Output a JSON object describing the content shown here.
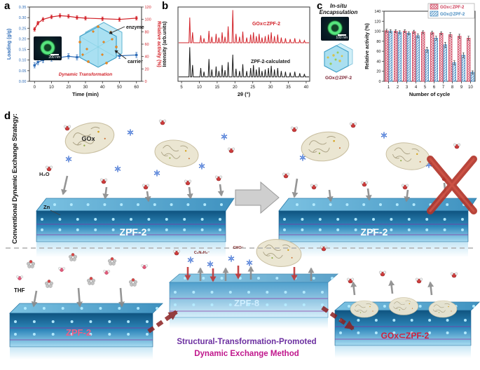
{
  "panels": {
    "a": {
      "label": "a",
      "inset": {
        "scalebar": "200 nm",
        "enzyme_label": "enzyme",
        "carrier_label": "carrier"
      }
    },
    "b": {
      "label": "b"
    },
    "c": {
      "label": "c",
      "inset": {
        "title_line1": "In-situ",
        "title_line2": "Encapsulation",
        "scalebar": "100 nm",
        "crystal_label": "GOx@ZPF-2"
      }
    },
    "d": {
      "label": "d",
      "conventional_label": "Conventional Dynamic Exchange Strategy:",
      "gox_label": "GOx",
      "h2o_label": "H₂O",
      "zn_label": "Zn",
      "slab1_label": "ZPF-2",
      "slab2_label": "ZPF-2",
      "slab3_label": "ZPF-2",
      "zpf8_label": "ZPF-8",
      "product_label": "GOx⊂ZPF-2",
      "mol_label1": "C₃N₂H₃⁻",
      "mol_label2": "CHO⁻",
      "thf_label": "THF",
      "method_line1": "Structural-Transformation-Promoted",
      "method_line2": "Dynamic Exchange Method"
    }
  },
  "chart_data": [
    {
      "type": "line",
      "title": "",
      "xlabel": "Time (min)",
      "ylabel_left": "Loading (g/g)",
      "ylabel_right": "Relative activity (%)",
      "xlim": [
        -3,
        63
      ],
      "xticks": [
        0,
        10,
        20,
        30,
        40,
        50,
        60
      ],
      "ylim_left": [
        0,
        0.35
      ],
      "yticks_left": [
        0,
        0.05,
        0.1,
        0.15,
        0.2,
        0.25,
        0.3,
        0.35
      ],
      "ylim_right": [
        0,
        120
      ],
      "yticks_right": [
        0,
        20,
        40,
        60,
        80,
        100,
        120
      ],
      "annotation": "Dynamic Transformation",
      "series": [
        {
          "name": "Loading",
          "axis": "left",
          "color": "#2f6db8",
          "marker": "square",
          "x": [
            0,
            2,
            5,
            10,
            15,
            20,
            25,
            30,
            40,
            50,
            60
          ],
          "y": [
            0.075,
            0.09,
            0.1,
            0.107,
            0.112,
            0.118,
            0.113,
            0.12,
            0.116,
            0.12,
            0.124
          ],
          "err": [
            0.012,
            0.012,
            0.012,
            0.012,
            0.012,
            0.012,
            0.012,
            0.012,
            0.012,
            0.012,
            0.012
          ]
        },
        {
          "name": "Relative activity",
          "axis": "right",
          "color": "#d2232a",
          "marker": "circle",
          "x": [
            0,
            2,
            5,
            10,
            15,
            20,
            25,
            30,
            40,
            50,
            60
          ],
          "y": [
            84,
            94,
            100,
            104,
            106,
            105,
            103,
            102,
            101,
            100,
            102
          ],
          "err": [
            3,
            3,
            3,
            3,
            3,
            3,
            3,
            3,
            3,
            3,
            3
          ]
        }
      ]
    },
    {
      "type": "line",
      "xlabel": "2θ (°)",
      "ylabel": "Intensity (arb.units)",
      "xlim": [
        4,
        41
      ],
      "xticks": [
        5,
        10,
        15,
        20,
        25,
        30,
        35,
        40
      ],
      "traces": [
        {
          "name": "GOx⊂ZPF-2",
          "color": "#d2232a",
          "offset": 0.5,
          "peaks": [
            [
              7.3,
              0.34
            ],
            [
              8.1,
              0.14
            ],
            [
              10.4,
              0.1
            ],
            [
              11.3,
              0.06
            ],
            [
              12.7,
              0.16
            ],
            [
              13.5,
              0.08
            ],
            [
              14.7,
              0.12
            ],
            [
              15.5,
              0.07
            ],
            [
              16.4,
              0.14
            ],
            [
              17.2,
              0.08
            ],
            [
              18.1,
              0.22
            ],
            [
              19.4,
              0.44
            ],
            [
              20.3,
              0.12
            ],
            [
              21.3,
              0.08
            ],
            [
              22.2,
              0.15
            ],
            [
              23.3,
              0.07
            ],
            [
              24.4,
              0.11
            ],
            [
              25.2,
              0.14
            ],
            [
              26,
              0.09
            ],
            [
              26.8,
              0.12
            ],
            [
              27.6,
              0.07
            ],
            [
              28.5,
              0.09
            ],
            [
              29.4,
              0.11
            ],
            [
              30.2,
              0.14
            ],
            [
              31.1,
              0.09
            ],
            [
              32,
              0.11
            ],
            [
              33,
              0.07
            ],
            [
              34.2,
              0.06
            ],
            [
              35.5,
              0.05
            ],
            [
              36.8,
              0.06
            ],
            [
              38.2,
              0.04
            ],
            [
              39.5,
              0.03
            ]
          ]
        },
        {
          "name": "ZPF-2-calculated",
          "color": "#1a1a1a",
          "offset": 0.04,
          "peaks": [
            [
              7.3,
              0.4
            ],
            [
              8.1,
              0.16
            ],
            [
              10.4,
              0.12
            ],
            [
              11.3,
              0.07
            ],
            [
              12.7,
              0.24
            ],
            [
              13.5,
              0.1
            ],
            [
              14.7,
              0.14
            ],
            [
              15.5,
              0.08
            ],
            [
              16.4,
              0.16
            ],
            [
              17.2,
              0.09
            ],
            [
              18.1,
              0.2
            ],
            [
              19.4,
              0.3
            ],
            [
              20.3,
              0.11
            ],
            [
              21.3,
              0.08
            ],
            [
              22.2,
              0.17
            ],
            [
              23.3,
              0.08
            ],
            [
              24.4,
              0.12
            ],
            [
              25.2,
              0.16
            ],
            [
              26,
              0.1
            ],
            [
              26.8,
              0.13
            ],
            [
              27.6,
              0.08
            ],
            [
              28.5,
              0.1
            ],
            [
              29.4,
              0.12
            ],
            [
              30.2,
              0.15
            ],
            [
              31.1,
              0.1
            ],
            [
              32,
              0.12
            ],
            [
              33,
              0.08
            ],
            [
              34.2,
              0.07
            ],
            [
              35.5,
              0.06
            ],
            [
              36.8,
              0.07
            ],
            [
              38.2,
              0.05
            ],
            [
              39.5,
              0.04
            ]
          ]
        }
      ]
    },
    {
      "type": "bar",
      "xlabel": "Number of cycle",
      "ylabel": "Relative activity (%)",
      "categories": [
        "1",
        "2",
        "3",
        "4",
        "5",
        "6",
        "7",
        "8",
        "9",
        "10"
      ],
      "ylim": [
        0,
        140
      ],
      "yticks": [
        0,
        20,
        40,
        60,
        80,
        100,
        120,
        140
      ],
      "legend_position": "top-right",
      "series": [
        {
          "name": "GOx⊂ZPF-2",
          "color": "#cc3a55",
          "fill": "#fceef1",
          "hatch": "cross",
          "values": [
            101,
            100,
            100,
            99,
            98,
            97,
            96,
            93,
            90,
            86
          ],
          "errors": [
            3,
            3,
            3,
            3,
            3,
            3,
            3,
            4,
            4,
            4
          ]
        },
        {
          "name": "GOx@ZPF-2",
          "color": "#3f86bd",
          "fill": "#eaf4fb",
          "hatch": "diagonal",
          "values": [
            100,
            98,
            96,
            91,
            63,
            86,
            73,
            37,
            52,
            18
          ],
          "errors": [
            3,
            3,
            3,
            4,
            5,
            4,
            5,
            4,
            5,
            3
          ]
        }
      ]
    }
  ]
}
